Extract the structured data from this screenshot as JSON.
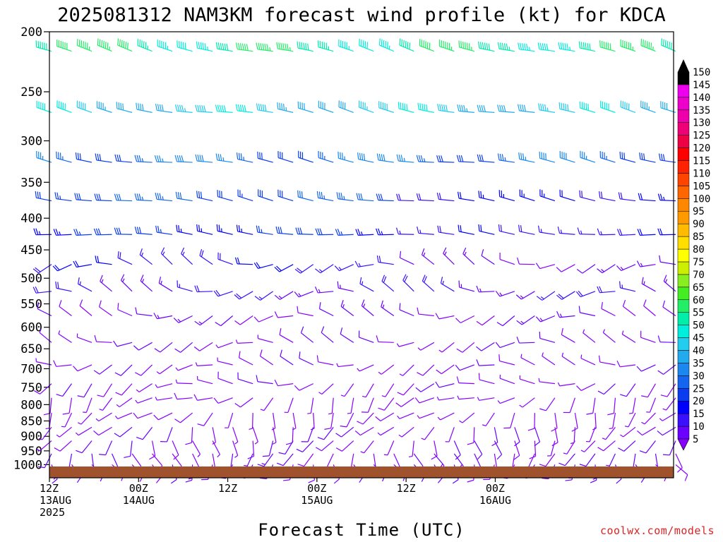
{
  "chart_data": {
    "type": "wind_barb_time_height",
    "title": "2025081312 NAM3KM forecast wind profile (kt) for KDCA",
    "xlabel": "Forecast Time (UTC)",
    "ylabel": "",
    "units": "kt",
    "y_axis": {
      "quantity": "pressure",
      "range": [
        1050,
        200
      ],
      "scale": "log",
      "ticks": [
        200,
        250,
        300,
        350,
        400,
        450,
        500,
        550,
        600,
        650,
        700,
        750,
        800,
        850,
        900,
        950,
        1000
      ]
    },
    "x_axis": {
      "range_hours": [
        0,
        84
      ],
      "ticks": [
        {
          "hour": 0,
          "label": "12Z",
          "sub": "13AUG",
          "sub2": "2025"
        },
        {
          "hour": 12,
          "label": "00Z",
          "sub": "14AUG",
          "sub2": ""
        },
        {
          "hour": 24,
          "label": "12Z",
          "sub": "",
          "sub2": ""
        },
        {
          "hour": 36,
          "label": "00Z",
          "sub": "15AUG",
          "sub2": ""
        },
        {
          "hour": 48,
          "label": "12Z",
          "sub": "",
          "sub2": ""
        },
        {
          "hour": 60,
          "label": "00Z",
          "sub": "16AUG",
          "sub2": ""
        }
      ]
    },
    "colorbar": {
      "levels": [
        5,
        10,
        15,
        20,
        25,
        30,
        35,
        40,
        45,
        50,
        55,
        60,
        65,
        70,
        75,
        80,
        85,
        90,
        95,
        100,
        105,
        110,
        115,
        120,
        125,
        130,
        135,
        140,
        145,
        150
      ],
      "colors": [
        "#8800ff",
        "#6a00ff",
        "#3a10ff",
        "#0000ff",
        "#0a3cf0",
        "#1466ee",
        "#1a88ee",
        "#22aaee",
        "#22ccee",
        "#00eedd",
        "#00eeaa",
        "#22ee66",
        "#44ee22",
        "#88ee22",
        "#ccee00",
        "#ffff00",
        "#ffdd00",
        "#ffbb00",
        "#ff9900",
        "#ff8800",
        "#ff6600",
        "#ff4400",
        "#ff2200",
        "#ff0000",
        "#ee0044",
        "#ee0077",
        "#ee00aa",
        "#ee00cc",
        "#ee00ee",
        "#000000"
      ]
    },
    "levels_hpa": [
      215,
      270,
      325,
      375,
      425,
      475,
      525,
      575,
      635,
      690,
      740,
      780,
      825,
      870,
      915,
      960,
      1000
    ],
    "profile_speeds_kt": [
      58,
      46,
      34,
      30,
      26,
      19,
      16,
      11,
      9,
      8,
      8,
      7,
      7,
      8,
      9,
      10,
      11
    ],
    "profile_dir_deg": [
      285,
      282,
      280,
      280,
      275,
      275,
      275,
      270,
      270,
      265,
      250,
      225,
      210,
      200,
      190,
      180,
      170
    ],
    "ground_color": "#a0522d"
  },
  "credit": "coolwx.com/models"
}
